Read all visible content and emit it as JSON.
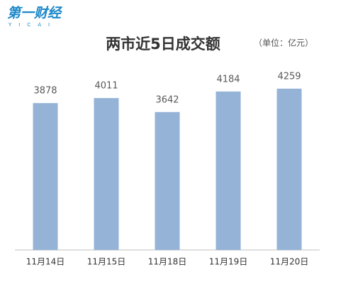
{
  "logo": {
    "name": "第一财经",
    "sub": "YICAI"
  },
  "chart_data": {
    "type": "bar",
    "title": "两市近5日成交额",
    "unit": "（单位：亿元）",
    "categories": [
      "11月14日",
      "11月15日",
      "11月18日",
      "11月19日",
      "11月20日"
    ],
    "values": [
      3878,
      4011,
      3642,
      4184,
      4259
    ],
    "color": "#95b3d7",
    "ylim": [
      0,
      4500
    ]
  }
}
